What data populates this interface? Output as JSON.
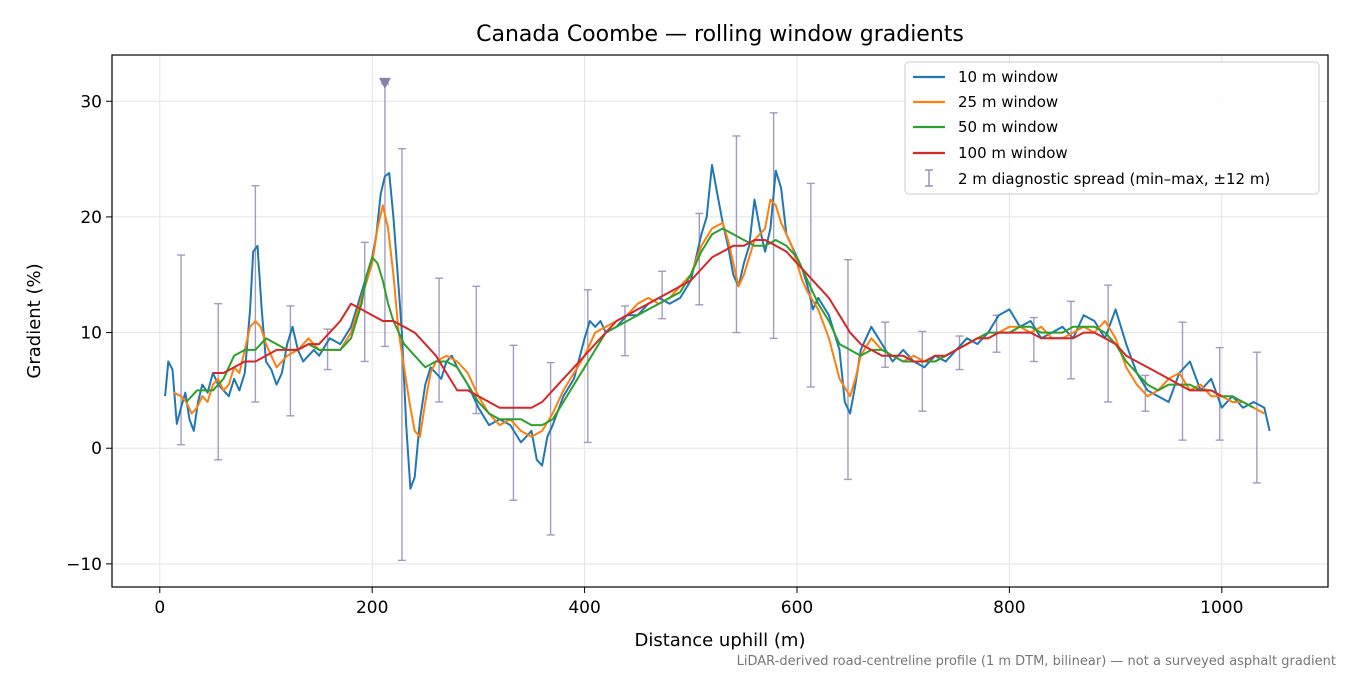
{
  "chart_data": {
    "type": "line",
    "title": "Canada Coombe — rolling window gradients",
    "xlabel": "Distance uphill (m)",
    "ylabel": "Gradient (%)",
    "footnote": "LiDAR-derived road-centreline profile (1 m DTM, bilinear) — not a surveyed asphalt gradient",
    "xlim": [
      -45,
      1100
    ],
    "ylim": [
      -12,
      34
    ],
    "x_ticks": [
      0,
      200,
      400,
      600,
      800,
      1000
    ],
    "x_tick_labels": [
      "0",
      "200",
      "400",
      "600",
      "800",
      "1000"
    ],
    "y_ticks": [
      -10,
      0,
      10,
      20,
      30
    ],
    "y_tick_labels": [
      "−10",
      "0",
      "10",
      "20",
      "30"
    ],
    "grid": true,
    "legend_position": "top-right",
    "series": [
      {
        "name": "10 m window",
        "color": "#1f77b4",
        "x": [
          5,
          8,
          12,
          16,
          20,
          24,
          28,
          32,
          36,
          40,
          45,
          50,
          55,
          60,
          65,
          70,
          75,
          80,
          85,
          88,
          92,
          96,
          100,
          105,
          110,
          115,
          120,
          125,
          130,
          135,
          140,
          145,
          150,
          160,
          170,
          180,
          190,
          195,
          200,
          204,
          208,
          212,
          216,
          220,
          224,
          228,
          232,
          236,
          240,
          245,
          250,
          255,
          260,
          265,
          270,
          275,
          280,
          290,
          300,
          310,
          320,
          330,
          340,
          350,
          355,
          360,
          365,
          370,
          380,
          390,
          400,
          405,
          410,
          415,
          420,
          430,
          440,
          450,
          460,
          470,
          480,
          490,
          500,
          505,
          510,
          515,
          520,
          525,
          530,
          535,
          540,
          545,
          550,
          555,
          560,
          565,
          570,
          575,
          580,
          585,
          590,
          595,
          600,
          605,
          610,
          615,
          620,
          630,
          640,
          645,
          650,
          655,
          660,
          670,
          680,
          690,
          700,
          710,
          720,
          730,
          740,
          750,
          760,
          770,
          780,
          790,
          800,
          810,
          820,
          830,
          840,
          850,
          860,
          870,
          880,
          890,
          900,
          910,
          920,
          930,
          940,
          950,
          960,
          970,
          980,
          990,
          1000,
          1010,
          1020,
          1030,
          1040,
          1045
        ],
        "y": [
          4.5,
          7.5,
          6.8,
          2.1,
          3.5,
          4.8,
          2.5,
          1.5,
          4.0,
          5.5,
          4.8,
          6.5,
          5.5,
          5.0,
          4.5,
          6.0,
          5.0,
          6.5,
          12.0,
          17.0,
          17.5,
          12.0,
          7.5,
          6.8,
          5.5,
          6.5,
          9.0,
          10.5,
          8.5,
          7.5,
          8.0,
          8.5,
          8.0,
          9.5,
          9.0,
          10.5,
          13.5,
          15.0,
          16.5,
          18.5,
          22.0,
          23.5,
          23.8,
          20.0,
          15.0,
          10.0,
          2.0,
          -3.5,
          -2.5,
          2.5,
          5.5,
          7.0,
          6.5,
          6.0,
          7.5,
          8.0,
          7.0,
          5.5,
          3.5,
          2.0,
          2.5,
          2.0,
          0.5,
          1.5,
          -1.0,
          -1.5,
          1.0,
          2.0,
          4.5,
          6.0,
          9.5,
          11.0,
          10.5,
          11.0,
          10.0,
          10.5,
          11.5,
          11.5,
          12.5,
          13.0,
          12.5,
          13.0,
          14.5,
          16.5,
          18.5,
          20.0,
          24.5,
          22.0,
          19.5,
          17.5,
          15.0,
          14.0,
          16.0,
          17.5,
          21.5,
          19.0,
          17.0,
          19.0,
          24.0,
          22.5,
          18.5,
          17.5,
          16.5,
          15.5,
          14.0,
          12.0,
          13.0,
          11.5,
          8.5,
          4.0,
          3.0,
          5.5,
          8.5,
          10.5,
          9.0,
          7.5,
          8.5,
          7.5,
          7.0,
          8.0,
          7.5,
          8.5,
          9.5,
          9.0,
          10.0,
          11.5,
          12.0,
          10.5,
          11.0,
          9.5,
          10.0,
          10.5,
          9.5,
          11.5,
          11.0,
          9.5,
          12.0,
          9.0,
          6.5,
          5.0,
          4.5,
          4.0,
          6.5,
          7.5,
          5.0,
          6.0,
          3.5,
          4.5,
          3.5,
          4.0,
          3.5,
          1.5
        ]
      },
      {
        "name": "25 m window",
        "color": "#ff7f0e",
        "x": [
          13,
          20,
          25,
          30,
          35,
          40,
          45,
          50,
          55,
          60,
          65,
          70,
          75,
          80,
          85,
          90,
          95,
          100,
          110,
          120,
          130,
          140,
          150,
          160,
          170,
          180,
          190,
          200,
          205,
          210,
          215,
          220,
          225,
          230,
          235,
          240,
          245,
          250,
          255,
          260,
          270,
          280,
          290,
          300,
          310,
          320,
          330,
          340,
          350,
          360,
          370,
          380,
          390,
          400,
          410,
          420,
          430,
          440,
          450,
          460,
          470,
          480,
          490,
          500,
          510,
          520,
          530,
          535,
          540,
          545,
          550,
          555,
          560,
          570,
          575,
          580,
          585,
          590,
          595,
          600,
          605,
          610,
          620,
          630,
          640,
          650,
          655,
          660,
          670,
          680,
          690,
          700,
          710,
          720,
          730,
          740,
          750,
          760,
          770,
          780,
          790,
          800,
          810,
          820,
          830,
          840,
          850,
          860,
          870,
          880,
          890,
          900,
          910,
          920,
          930,
          940,
          950,
          960,
          970,
          980,
          990,
          1000,
          1010,
          1020,
          1030,
          1040
        ],
        "y": [
          4.8,
          4.5,
          4.0,
          3.0,
          3.5,
          4.5,
          4.0,
          5.5,
          6.0,
          5.0,
          5.5,
          7.0,
          6.5,
          8.5,
          10.5,
          11.0,
          10.5,
          9.0,
          7.0,
          8.0,
          8.5,
          9.5,
          8.5,
          8.5,
          8.5,
          10.0,
          13.0,
          16.0,
          19.0,
          21.0,
          19.0,
          15.0,
          10.0,
          7.0,
          4.0,
          1.5,
          1.0,
          4.0,
          6.5,
          7.5,
          8.0,
          7.5,
          6.5,
          4.5,
          3.0,
          2.0,
          2.5,
          1.5,
          1.0,
          1.5,
          3.0,
          5.0,
          6.5,
          8.0,
          10.0,
          10.5,
          11.0,
          11.5,
          12.5,
          13.0,
          12.5,
          13.0,
          14.0,
          15.0,
          17.5,
          19.0,
          19.5,
          18.0,
          16.0,
          14.0,
          15.0,
          16.5,
          18.0,
          19.0,
          21.5,
          21.0,
          19.5,
          18.5,
          17.5,
          16.0,
          14.5,
          13.5,
          12.0,
          9.5,
          6.0,
          4.5,
          6.0,
          8.0,
          9.5,
          8.5,
          8.0,
          7.5,
          8.0,
          7.5,
          7.5,
          8.0,
          8.5,
          9.0,
          9.5,
          9.5,
          10.0,
          10.5,
          10.5,
          10.0,
          10.5,
          9.5,
          9.5,
          10.0,
          10.5,
          10.0,
          11.0,
          9.5,
          7.0,
          5.5,
          4.5,
          5.0,
          6.0,
          6.5,
          5.0,
          5.5,
          4.5,
          4.5,
          4.0,
          4.0,
          3.5,
          3.0
        ]
      },
      {
        "name": "50 m window",
        "color": "#2ca02c",
        "x": [
          25,
          30,
          35,
          40,
          50,
          60,
          70,
          80,
          90,
          100,
          110,
          120,
          130,
          140,
          150,
          160,
          170,
          180,
          190,
          195,
          200,
          205,
          210,
          215,
          220,
          230,
          240,
          250,
          260,
          270,
          280,
          290,
          300,
          310,
          320,
          330,
          340,
          350,
          360,
          370,
          380,
          390,
          400,
          410,
          420,
          430,
          440,
          450,
          460,
          470,
          480,
          490,
          500,
          510,
          520,
          530,
          540,
          550,
          560,
          570,
          580,
          590,
          600,
          610,
          620,
          630,
          640,
          650,
          660,
          670,
          680,
          690,
          700,
          710,
          720,
          730,
          740,
          750,
          760,
          770,
          780,
          790,
          800,
          810,
          820,
          830,
          840,
          850,
          860,
          870,
          880,
          890,
          900,
          910,
          920,
          930,
          940,
          950,
          960,
          970,
          980,
          990,
          1000,
          1010,
          1020,
          1030
        ],
        "y": [
          4.0,
          4.5,
          5.0,
          5.0,
          5.0,
          6.0,
          8.0,
          8.5,
          8.5,
          9.5,
          9.0,
          8.5,
          8.5,
          9.0,
          8.5,
          8.5,
          8.5,
          9.5,
          12.5,
          15.0,
          16.5,
          16.0,
          14.5,
          12.5,
          11.0,
          9.0,
          8.0,
          7.0,
          7.5,
          7.5,
          7.0,
          5.5,
          4.0,
          3.0,
          2.5,
          2.5,
          2.5,
          2.0,
          2.0,
          2.5,
          4.0,
          5.5,
          7.0,
          8.5,
          10.0,
          10.5,
          11.0,
          11.5,
          12.0,
          12.5,
          13.0,
          13.5,
          15.0,
          17.0,
          18.5,
          19.0,
          18.5,
          18.0,
          17.5,
          17.5,
          18.0,
          17.5,
          16.5,
          14.5,
          12.5,
          11.0,
          9.0,
          8.5,
          8.0,
          8.5,
          8.5,
          8.0,
          7.5,
          7.5,
          7.5,
          7.5,
          8.0,
          8.5,
          9.0,
          9.5,
          10.0,
          10.0,
          10.0,
          10.5,
          10.5,
          10.0,
          10.0,
          10.0,
          10.5,
          10.5,
          10.5,
          10.0,
          9.0,
          7.5,
          6.5,
          5.5,
          5.0,
          5.5,
          5.5,
          5.5,
          5.0,
          5.0,
          4.5,
          4.5,
          4.0,
          3.5
        ]
      },
      {
        "name": "100 m window",
        "color": "#d62728",
        "x": [
          50,
          60,
          70,
          80,
          90,
          100,
          110,
          120,
          130,
          140,
          150,
          160,
          170,
          180,
          190,
          200,
          210,
          220,
          230,
          240,
          250,
          260,
          270,
          280,
          290,
          300,
          310,
          320,
          330,
          340,
          350,
          360,
          370,
          380,
          390,
          400,
          410,
          420,
          430,
          440,
          450,
          460,
          470,
          480,
          490,
          500,
          510,
          520,
          530,
          540,
          550,
          560,
          570,
          580,
          590,
          600,
          610,
          620,
          630,
          640,
          650,
          660,
          670,
          680,
          690,
          700,
          710,
          720,
          730,
          740,
          750,
          760,
          770,
          780,
          790,
          800,
          810,
          820,
          830,
          840,
          850,
          860,
          870,
          880,
          890,
          900,
          910,
          920,
          930,
          940,
          950,
          960,
          970,
          980,
          990,
          1000
        ],
        "y": [
          6.5,
          6.5,
          7.0,
          7.5,
          7.5,
          8.0,
          8.5,
          8.5,
          8.5,
          9.0,
          9.0,
          10.0,
          11.0,
          12.5,
          12.0,
          11.5,
          11.0,
          11.0,
          10.5,
          10.0,
          9.0,
          8.0,
          6.5,
          5.0,
          5.0,
          4.5,
          4.0,
          3.5,
          3.5,
          3.5,
          3.5,
          4.0,
          5.0,
          6.0,
          7.0,
          8.0,
          9.0,
          10.0,
          11.0,
          11.5,
          12.0,
          12.5,
          13.0,
          13.5,
          14.0,
          14.5,
          15.5,
          16.5,
          17.0,
          17.5,
          17.5,
          18.0,
          18.0,
          17.5,
          17.0,
          16.0,
          15.0,
          14.0,
          13.0,
          11.5,
          10.0,
          9.0,
          8.5,
          8.0,
          8.0,
          8.0,
          7.5,
          7.5,
          8.0,
          8.0,
          8.5,
          9.0,
          9.5,
          9.5,
          10.0,
          10.0,
          10.0,
          10.0,
          9.5,
          9.5,
          9.5,
          9.5,
          10.0,
          10.0,
          9.5,
          9.0,
          8.0,
          7.5,
          7.0,
          6.5,
          6.0,
          5.5,
          5.0,
          5.0,
          5.0,
          4.5
        ]
      }
    ],
    "diagnostic": {
      "name": "2 m diagnostic spread (min–max, ±12 m)",
      "color": "#9b90b8",
      "x": [
        20,
        55,
        90,
        123,
        158,
        193,
        212,
        228,
        263,
        298,
        333,
        368,
        403,
        438,
        473,
        508,
        543,
        578,
        613,
        648,
        683,
        718,
        753,
        788,
        823,
        858,
        893,
        928,
        963,
        998,
        1033
      ],
      "ymin": [
        0.3,
        -1.0,
        4.0,
        2.8,
        6.8,
        7.5,
        8.8,
        -9.7,
        4.0,
        3.0,
        -4.5,
        -7.5,
        0.5,
        8.0,
        11.2,
        12.4,
        10.0,
        9.5,
        5.3,
        -2.7,
        7.0,
        3.2,
        6.8,
        8.3,
        7.5,
        6.0,
        4.0,
        3.2,
        0.7,
        0.7,
        -3.0
      ],
      "ymax": [
        16.7,
        12.5,
        22.7,
        12.3,
        10.3,
        17.8,
        31.5,
        25.9,
        14.7,
        14.0,
        8.9,
        7.4,
        13.7,
        12.3,
        15.3,
        20.3,
        27.0,
        29.0,
        22.9,
        16.3,
        10.9,
        10.1,
        9.7,
        11.5,
        11.3,
        12.7,
        14.1,
        6.3,
        10.9,
        8.7,
        8.3
      ],
      "clipped_marker_x": 212
    }
  }
}
